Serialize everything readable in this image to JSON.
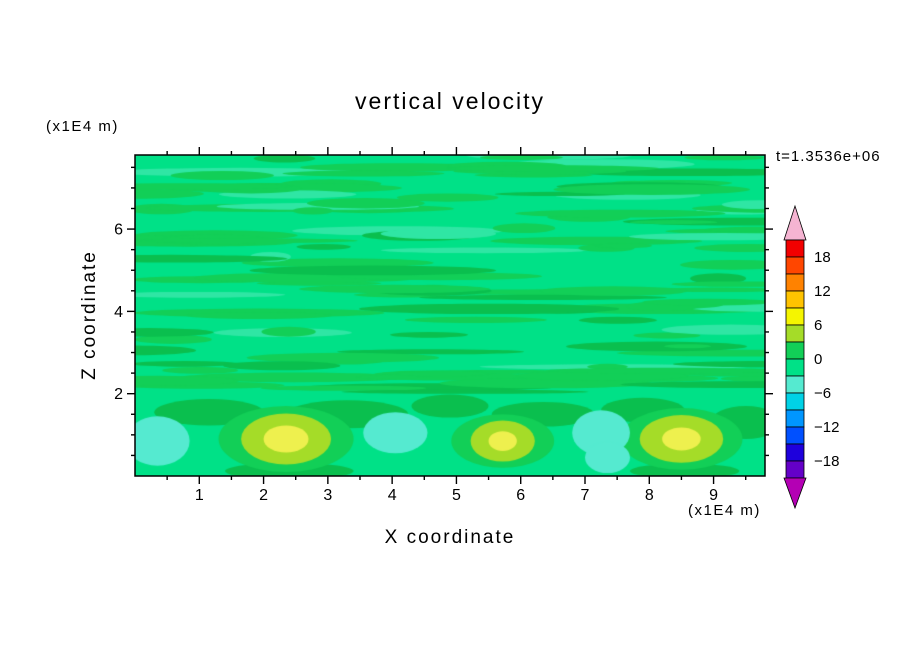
{
  "chart_data": {
    "type": "contour",
    "title": "vertical velocity",
    "time_annotation": "t=1.3536e+06",
    "xlabel": "X coordinate",
    "ylabel": "Z coordinate",
    "x_units": "(x1E4 m)",
    "y_units": "(x1E4 m)",
    "xlim": [
      0,
      9.8
    ],
    "ylim": [
      0,
      7.8
    ],
    "x_major_ticks": [
      1,
      2,
      3,
      4,
      5,
      6,
      7,
      8,
      9
    ],
    "y_major_ticks": [
      2,
      4,
      6
    ],
    "minor_tick_step": 0.5,
    "colorbar": {
      "labels": [
        "18",
        "12",
        "6",
        "0",
        "−6",
        "−12",
        "−18"
      ],
      "level_step": 3,
      "top_arrow_color": "#f5b4d2",
      "bottom_arrow_color": "#b400b4",
      "segments_top_to_bottom": [
        {
          "range": "18..21",
          "color": "#f20000"
        },
        {
          "range": "15..18",
          "color": "#ff4600"
        },
        {
          "range": "12..15",
          "color": "#ff8200"
        },
        {
          "range": "9..12",
          "color": "#ffc300"
        },
        {
          "range": "6..9",
          "color": "#f5f500"
        },
        {
          "range": "3..6",
          "color": "#a5dc28"
        },
        {
          "range": "0..3",
          "color": "#12cf57"
        },
        {
          "range": "-3..0",
          "color": "#00e187"
        },
        {
          "range": "-6..-3",
          "color": "#55ead0"
        },
        {
          "range": "-9..-6",
          "color": "#00d2e6"
        },
        {
          "range": "-12..-9",
          "color": "#0096ff"
        },
        {
          "range": "-15..-12",
          "color": "#0050ff"
        },
        {
          "range": "-18..-15",
          "color": "#1e00dc"
        },
        {
          "range": "-21..-18",
          "color": "#6400c8"
        }
      ]
    },
    "field": {
      "base_color": "#00e187",
      "streak_colors": [
        "#12cf57",
        "#0abf4e",
        "#2fe6a4"
      ],
      "streak_seed": 73,
      "streak_count": 130,
      "streak_region_top_z": 7.8,
      "streak_region_bottom_z": 2.0,
      "blobs": [
        {
          "x": 1.15,
          "z": 1.55,
          "rx": 0.85,
          "rz": 0.32,
          "color": "#0abf4e"
        },
        {
          "x": 3.3,
          "z": 1.5,
          "rx": 0.95,
          "rz": 0.34,
          "color": "#0abf4e"
        },
        {
          "x": 4.9,
          "z": 1.7,
          "rx": 0.6,
          "rz": 0.28,
          "color": "#0abf4e"
        },
        {
          "x": 6.35,
          "z": 1.5,
          "rx": 0.8,
          "rz": 0.3,
          "color": "#0abf4e"
        },
        {
          "x": 7.9,
          "z": 1.6,
          "rx": 0.65,
          "rz": 0.3,
          "color": "#0abf4e"
        },
        {
          "x": 9.5,
          "z": 1.3,
          "rx": 0.55,
          "rz": 0.4,
          "color": "#0abf4e"
        },
        {
          "x": 2.4,
          "z": 0.12,
          "rx": 1.0,
          "rz": 0.2,
          "color": "#0abf4e"
        },
        {
          "x": 8.55,
          "z": 0.12,
          "rx": 0.85,
          "rz": 0.18,
          "color": "#0abf4e"
        },
        {
          "x": 2.35,
          "z": 0.9,
          "rx": 1.05,
          "rz": 0.8,
          "color": "#12cf57"
        },
        {
          "x": 5.72,
          "z": 0.85,
          "rx": 0.8,
          "rz": 0.65,
          "color": "#12cf57"
        },
        {
          "x": 8.5,
          "z": 0.9,
          "rx": 0.95,
          "rz": 0.75,
          "color": "#12cf57"
        },
        {
          "x": 0.35,
          "z": 0.85,
          "rx": 0.5,
          "rz": 0.6,
          "color": "#55ead0"
        },
        {
          "x": 4.05,
          "z": 1.05,
          "rx": 0.5,
          "rz": 0.5,
          "color": "#55ead0"
        },
        {
          "x": 7.25,
          "z": 1.05,
          "rx": 0.45,
          "rz": 0.55,
          "color": "#55ead0"
        },
        {
          "x": 7.35,
          "z": 0.45,
          "rx": 0.35,
          "rz": 0.38,
          "color": "#55ead0"
        },
        {
          "x": 2.35,
          "z": 0.9,
          "rx": 0.7,
          "rz": 0.62,
          "color": "#a5dc28"
        },
        {
          "x": 5.72,
          "z": 0.85,
          "rx": 0.5,
          "rz": 0.5,
          "color": "#a5dc28"
        },
        {
          "x": 8.5,
          "z": 0.9,
          "rx": 0.65,
          "rz": 0.58,
          "color": "#a5dc28"
        },
        {
          "x": 2.35,
          "z": 0.9,
          "rx": 0.35,
          "rz": 0.33,
          "color": "#eef04e"
        },
        {
          "x": 5.72,
          "z": 0.85,
          "rx": 0.22,
          "rz": 0.24,
          "color": "#eef04e"
        },
        {
          "x": 8.5,
          "z": 0.9,
          "rx": 0.3,
          "rz": 0.28,
          "color": "#eef04e"
        }
      ]
    }
  }
}
